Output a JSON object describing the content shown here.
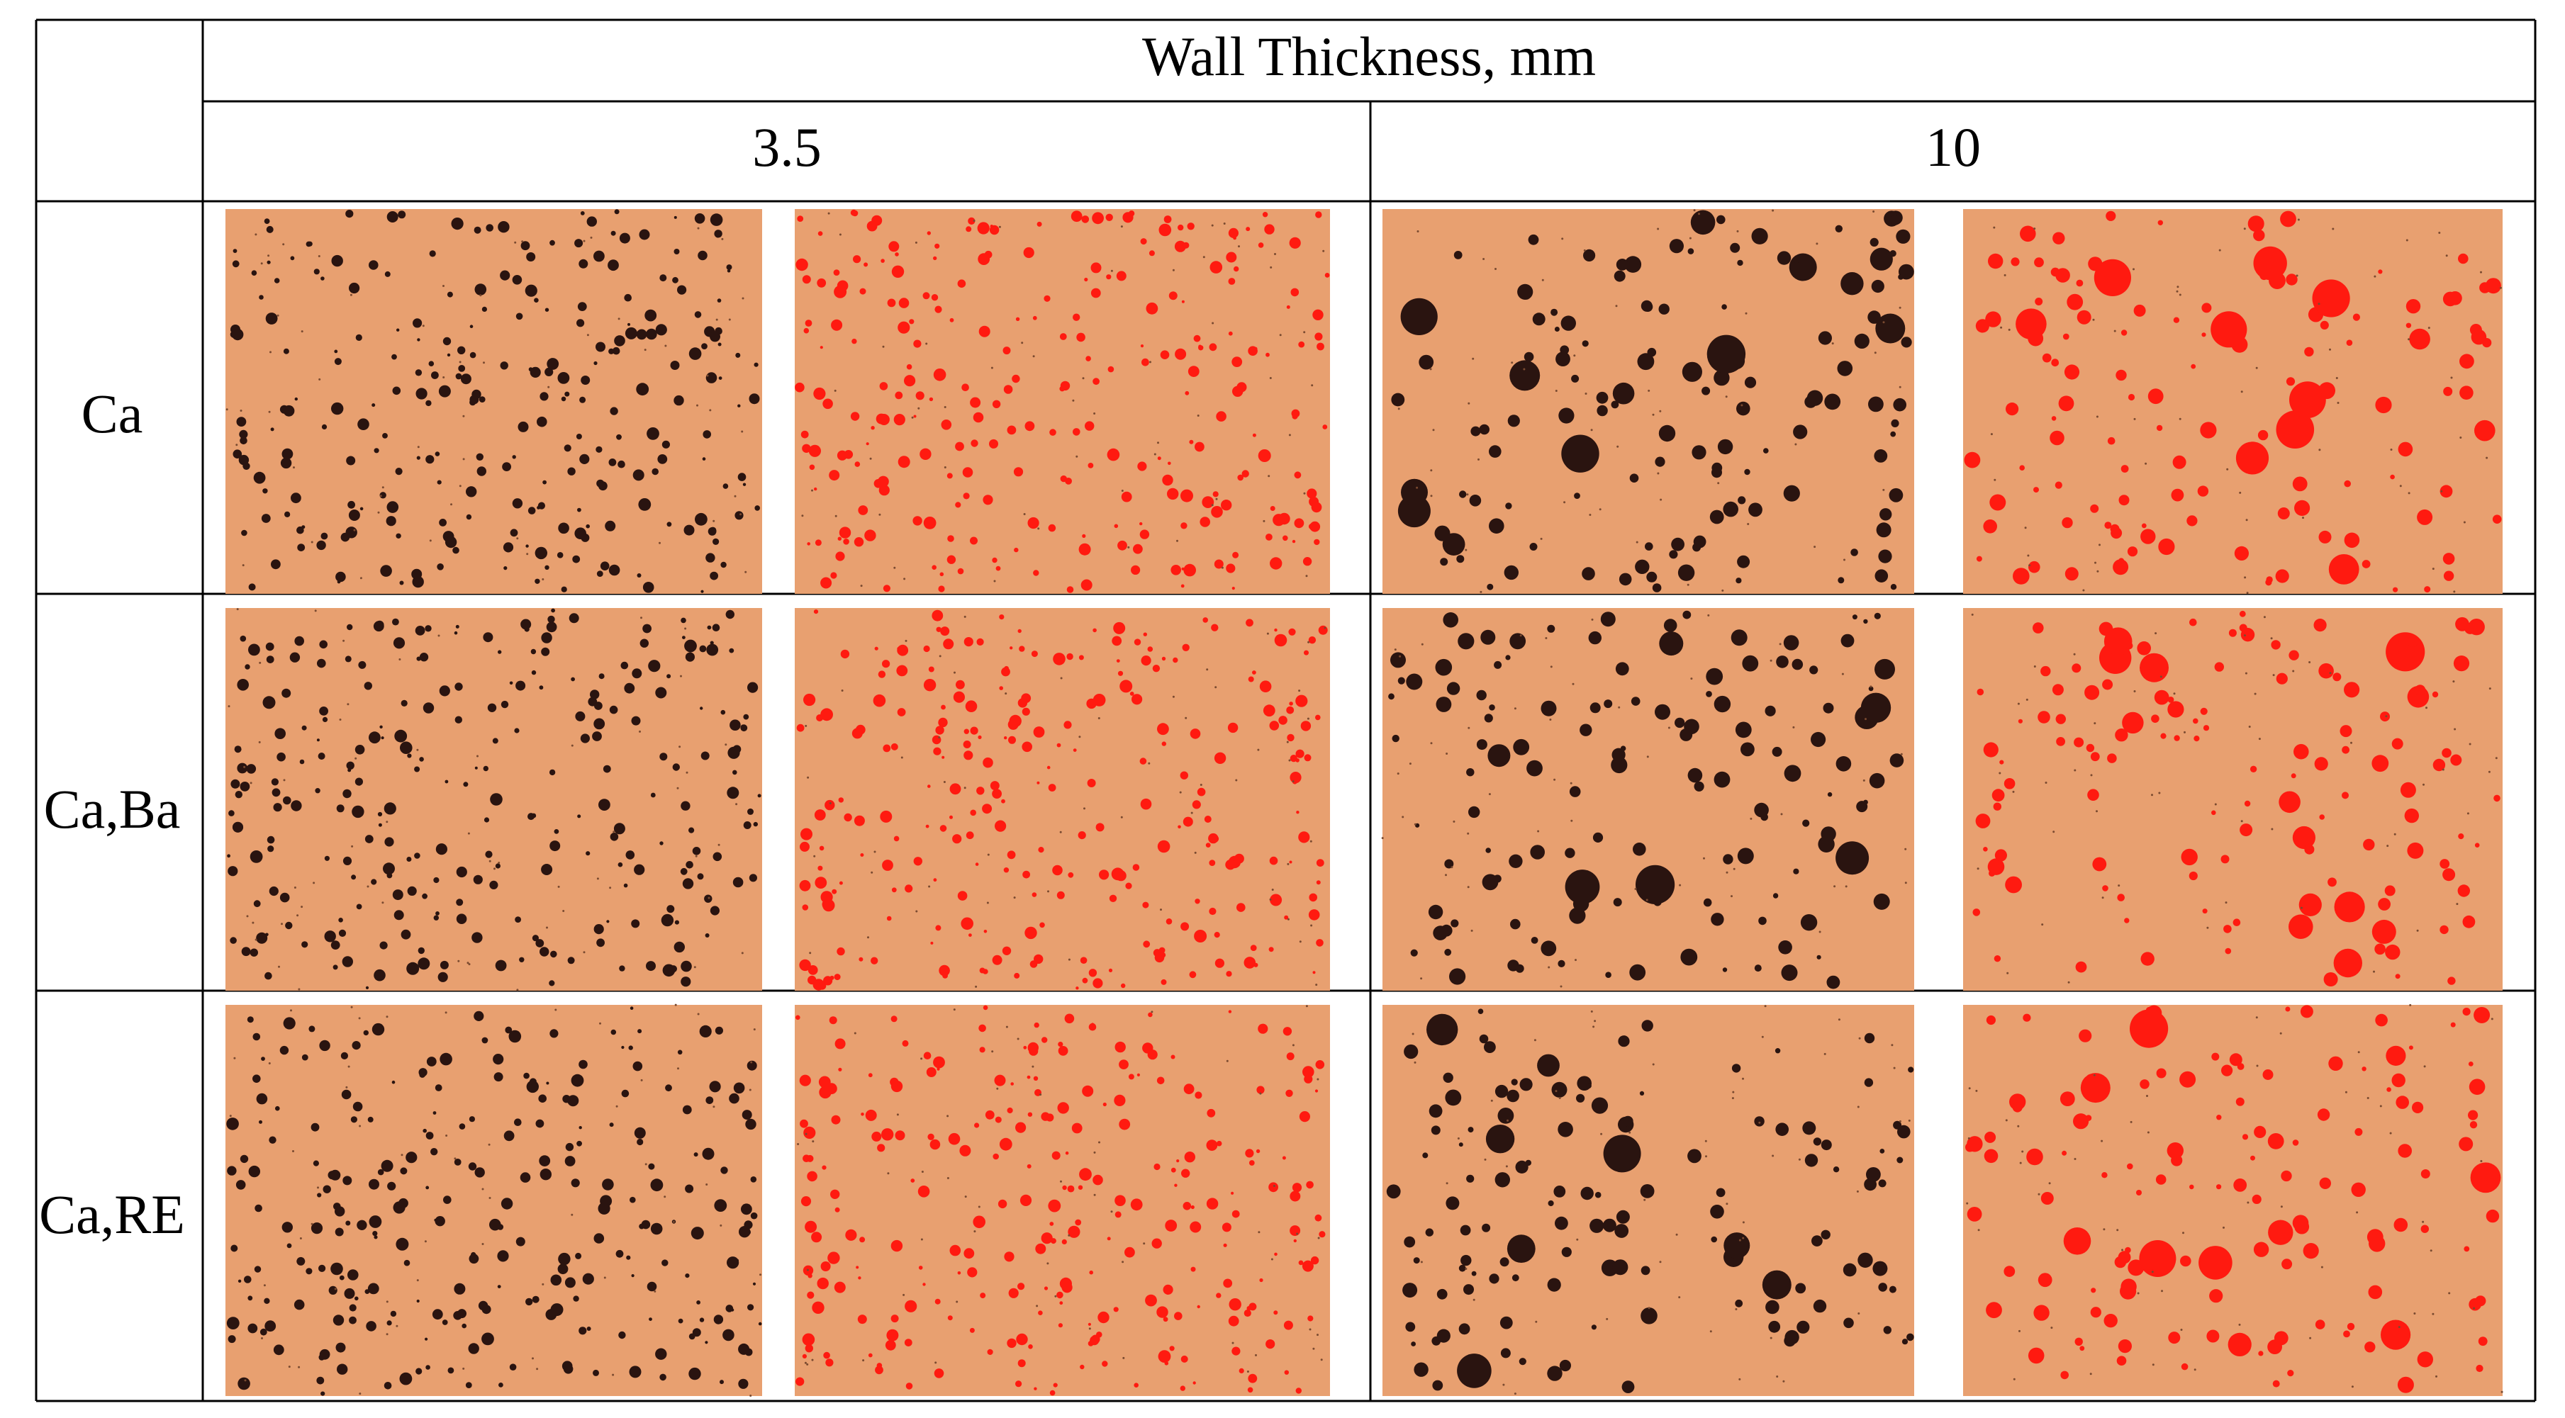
{
  "header": {
    "title": "Wall Thickness, mm",
    "columns": [
      "3.5",
      "10"
    ]
  },
  "rows": [
    "Ca",
    "Ca,Ba",
    "Ca,RE"
  ]
}
